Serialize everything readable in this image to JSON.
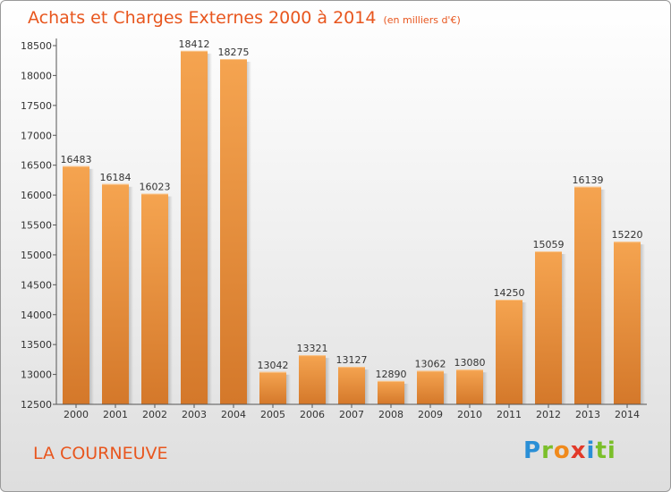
{
  "chart_data": {
    "type": "bar",
    "title": "Achats et Charges Externes 2000 à 2014",
    "unit_note": "(en milliers d'€)",
    "categories": [
      "2000",
      "2001",
      "2002",
      "2003",
      "2004",
      "2005",
      "2006",
      "2007",
      "2008",
      "2009",
      "2010",
      "2011",
      "2012",
      "2013",
      "2014"
    ],
    "values": [
      16483,
      16184,
      16023,
      18412,
      18275,
      13042,
      13321,
      13127,
      12890,
      13062,
      13080,
      14250,
      15059,
      16139,
      15220
    ],
    "ylim": [
      12500,
      18500
    ],
    "yticks": [
      12500,
      13000,
      13500,
      14000,
      14500,
      15000,
      15500,
      16000,
      16500,
      17000,
      17500,
      18000,
      18500
    ],
    "grid": false,
    "bar_color_top": "#f5a450",
    "bar_color_bottom": "#d4782a",
    "xlabel": "",
    "ylabel": ""
  },
  "footer": {
    "place": "LA COURNEUVE",
    "logo_parts": [
      "P",
      "r",
      "o",
      "x",
      "i",
      "ti"
    ]
  },
  "colors": {
    "title": "#e8561e",
    "place": "#e8561e"
  }
}
